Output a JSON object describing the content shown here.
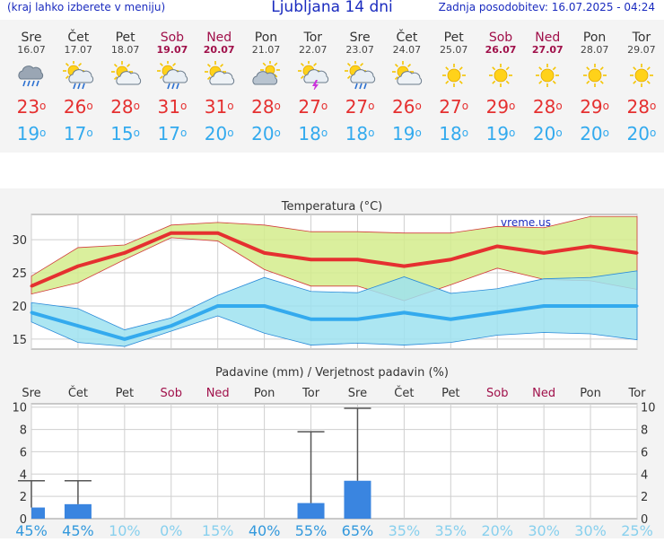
{
  "header": {
    "left_note": "(kraj lahko izberete v meniju)",
    "title": "Ljubljana 14 dni",
    "updated": "Zadnja posodobitev: 16.07.2025 - 04:24"
  },
  "colors": {
    "max_temp": "#e53030",
    "min_temp": "#33aaee",
    "weekend": "#a0104a",
    "precip_bar": "#3a85e0",
    "brand": "#1a2bbf"
  },
  "days": [
    {
      "name": "Sre",
      "date": "16.07",
      "icon": "heavy-rain-cloud-icon",
      "max": "23",
      "min": "19",
      "weekend": false
    },
    {
      "name": "Čet",
      "date": "17.07",
      "icon": "sun-cloud-rain-icon",
      "max": "26",
      "min": "17",
      "weekend": false
    },
    {
      "name": "Pet",
      "date": "18.07",
      "icon": "sun-cloud-icon",
      "max": "28",
      "min": "15",
      "weekend": false
    },
    {
      "name": "Sob",
      "date": "19.07",
      "icon": "sun-cloud-rain-icon",
      "max": "31",
      "min": "17",
      "weekend": true
    },
    {
      "name": "Ned",
      "date": "20.07",
      "icon": "sun-cloud-icon",
      "max": "31",
      "min": "20",
      "weekend": true
    },
    {
      "name": "Pon",
      "date": "21.07",
      "icon": "cloudy-sun-icon",
      "max": "28",
      "min": "20",
      "weekend": false
    },
    {
      "name": "Tor",
      "date": "22.07",
      "icon": "sun-cloud-storm-icon",
      "max": "27",
      "min": "18",
      "weekend": false
    },
    {
      "name": "Sre",
      "date": "23.07",
      "icon": "sun-cloud-rain-icon",
      "max": "27",
      "min": "18",
      "weekend": false
    },
    {
      "name": "Čet",
      "date": "24.07",
      "icon": "sun-cloud-icon",
      "max": "26",
      "min": "19",
      "weekend": false
    },
    {
      "name": "Pet",
      "date": "25.07",
      "icon": "sun-icon",
      "max": "27",
      "min": "18",
      "weekend": false
    },
    {
      "name": "Sob",
      "date": "26.07",
      "icon": "sun-icon",
      "max": "29",
      "min": "19",
      "weekend": true
    },
    {
      "name": "Ned",
      "date": "27.07",
      "icon": "sun-icon",
      "max": "28",
      "min": "20",
      "weekend": true
    },
    {
      "name": "Pon",
      "date": "28.07",
      "icon": "sun-icon",
      "max": "29",
      "min": "20",
      "weekend": false
    },
    {
      "name": "Tor",
      "date": "29.07",
      "icon": "sun-icon",
      "max": "28",
      "min": "20",
      "weekend": false
    }
  ],
  "chart_data": [
    {
      "type": "line",
      "title": "Temperatura (°C)",
      "watermark": "vreme.us",
      "categories": [
        "Sre",
        "Čet",
        "Pet",
        "Sob",
        "Ned",
        "Pon",
        "Tor",
        "Sre",
        "Čet",
        "Pet",
        "Sob",
        "Ned",
        "Pon",
        "Tor"
      ],
      "ylim": [
        13.5,
        33.8
      ],
      "yticks": [
        15,
        20,
        25,
        30
      ],
      "grid": true,
      "series": [
        {
          "values": [
            23,
            26,
            28,
            31,
            31,
            28,
            27,
            27,
            26,
            27,
            29,
            28,
            29,
            28
          ],
          "color": "#e53030"
        },
        {
          "values": [
            19,
            17,
            15,
            17,
            20,
            20,
            18,
            18,
            19,
            18,
            19,
            20,
            20,
            20
          ],
          "color": "#33aaee"
        }
      ],
      "bands": [
        {
          "upper": [
            24.5,
            28.8,
            29.2,
            32.2,
            32.6,
            32.2,
            31.2,
            31.2,
            31.0,
            31.0,
            32.0,
            31.8,
            33.5,
            33.5
          ],
          "lower": [
            21.8,
            23.5,
            27.0,
            30.3,
            29.8,
            25.5,
            23.0,
            23.0,
            20.8,
            23.2,
            25.7,
            24.0,
            23.8,
            22.5
          ],
          "color": "#d4ec8c"
        },
        {
          "upper": [
            20.5,
            19.6,
            16.4,
            18.2,
            21.6,
            24.3,
            22.2,
            22.0,
            24.4,
            21.9,
            22.6,
            24.1,
            24.3,
            25.3
          ],
          "lower": [
            17.6,
            14.5,
            13.9,
            16.2,
            18.5,
            15.9,
            14.1,
            14.4,
            14.1,
            14.5,
            15.6,
            16.0,
            15.8,
            14.9
          ],
          "color": "#9ee2f0"
        }
      ]
    },
    {
      "type": "bar",
      "title": "Padavine (mm) / Verjetnost padavin (%)",
      "categories": [
        "Sre",
        "Čet",
        "Pet",
        "Sob",
        "Ned",
        "Pon",
        "Tor",
        "Sre",
        "Čet",
        "Pet",
        "Sob",
        "Ned",
        "Pon",
        "Tor"
      ],
      "ylim": [
        0,
        10.3
      ],
      "yticks": [
        0,
        2,
        4,
        6,
        8,
        10
      ],
      "values": [
        1.0,
        1.3,
        0,
        0,
        0,
        0,
        1.4,
        3.4,
        0,
        0,
        0,
        0,
        0,
        0
      ],
      "range_max": [
        3.4,
        3.4,
        0,
        0,
        0,
        0,
        7.8,
        9.9,
        0,
        0,
        0,
        0,
        0,
        0
      ],
      "probability": [
        "45%",
        "45%",
        "10%",
        "0%",
        "15%",
        "40%",
        "55%",
        "65%",
        "35%",
        "35%",
        "20%",
        "30%",
        "30%",
        "25%"
      ]
    }
  ]
}
